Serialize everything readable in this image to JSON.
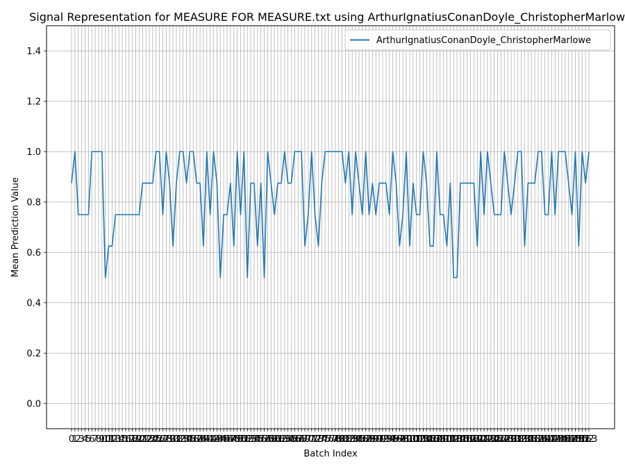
{
  "chart_data": {
    "type": "line",
    "title": "Signal Representation for MEASURE FOR MEASURE.txt using ArthurIgnatiusConanDoyle_ChristopherMarlowe",
    "xlabel": "Batch Index",
    "ylabel": "Mean Prediction Value",
    "ylim": [
      -0.1,
      1.5
    ],
    "yticks": [
      0.0,
      0.2,
      0.4,
      0.6,
      0.8,
      1.0,
      1.2,
      1.4
    ],
    "grid": true,
    "legend_position": "top-right",
    "series": [
      {
        "name": "ArthurIgnatiusConanDoyle_ChristopherMarlowe",
        "color": "#1f77b4",
        "values": [
          0.875,
          1.0,
          0.75,
          0.75,
          0.75,
          0.75,
          1.0,
          1.0,
          1.0,
          1.0,
          0.5,
          0.625,
          0.625,
          0.75,
          0.75,
          0.75,
          0.75,
          0.75,
          0.75,
          0.75,
          0.75,
          0.875,
          0.875,
          0.875,
          0.875,
          1.0,
          1.0,
          0.75,
          1.0,
          0.875,
          0.625,
          0.875,
          1.0,
          1.0,
          0.875,
          1.0,
          1.0,
          0.875,
          0.875,
          0.625,
          1.0,
          0.75,
          1.0,
          0.875,
          0.5,
          0.75,
          0.75,
          0.875,
          0.625,
          1.0,
          0.75,
          1.0,
          0.5,
          0.875,
          0.875,
          0.625,
          0.875,
          0.5,
          1.0,
          0.875,
          0.75,
          0.875,
          0.875,
          1.0,
          0.875,
          0.875,
          1.0,
          1.0,
          1.0,
          0.625,
          0.75,
          1.0,
          0.75,
          0.625,
          0.875,
          1.0,
          1.0,
          1.0,
          1.0,
          1.0,
          1.0,
          0.875,
          1.0,
          0.75,
          1.0,
          0.875,
          0.75,
          1.0,
          0.75,
          0.875,
          0.75,
          0.875,
          0.875,
          0.875,
          0.75,
          1.0,
          0.875,
          0.625,
          0.75,
          1.0,
          0.625,
          0.875,
          0.75,
          0.75,
          1.0,
          0.875,
          0.625,
          0.625,
          1.0,
          0.75,
          0.75,
          0.625,
          0.875,
          0.5,
          0.5,
          0.875,
          0.875,
          0.875,
          0.875,
          0.875,
          0.625,
          1.0,
          0.75,
          1.0,
          0.875,
          0.75,
          0.75,
          0.75,
          1.0,
          0.875,
          0.75,
          0.875,
          1.0,
          1.0,
          0.625,
          0.875,
          0.875,
          0.875,
          1.0,
          1.0,
          0.75,
          0.75,
          1.0,
          0.75,
          1.0,
          1.0,
          1.0,
          0.875,
          0.75,
          1.0,
          0.625,
          1.0,
          0.875,
          1.0
        ]
      }
    ]
  }
}
